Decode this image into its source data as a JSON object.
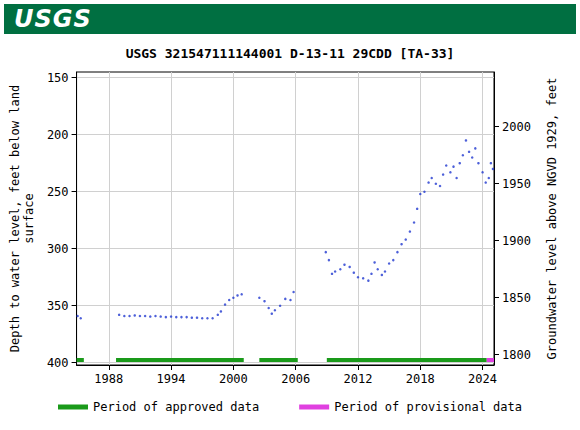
{
  "header": {
    "logo": "USGS"
  },
  "chart_data": {
    "type": "scatter",
    "title": "USGS 321547111144001 D-13-11 29CDD [TA-33]",
    "y_label": "Depth to water level, feet below land\nsurface",
    "y2_label": "Groundwater level above NGVD 1929, feet",
    "color": "#2038d0",
    "marker": "dot",
    "x": [
      1985.0,
      1985.3,
      1989.0,
      1989.5,
      1990.0,
      1990.5,
      1991.0,
      1991.5,
      1992.0,
      1992.5,
      1993.0,
      1993.5,
      1994.0,
      1994.5,
      1995.0,
      1995.5,
      1996.0,
      1996.5,
      1997.0,
      1997.5,
      1998.0,
      1998.5,
      1998.8,
      1999.2,
      1999.6,
      2000.0,
      2000.4,
      2000.8,
      2002.5,
      2003.0,
      2003.4,
      2003.7,
      2004.0,
      2004.5,
      2005.0,
      2005.5,
      2005.8,
      2008.9,
      2009.2,
      2009.5,
      2009.8,
      2010.3,
      2010.7,
      2011.2,
      2011.6,
      2012.0,
      2012.5,
      2013.0,
      2013.3,
      2013.6,
      2013.9,
      2014.3,
      2014.6,
      2015.0,
      2015.4,
      2015.8,
      2016.2,
      2016.6,
      2017.0,
      2017.4,
      2017.7,
      2018.0,
      2018.4,
      2018.8,
      2019.1,
      2019.5,
      2019.9,
      2020.2,
      2020.5,
      2020.9,
      2021.2,
      2021.5,
      2021.8,
      2022.1,
      2022.4,
      2022.7,
      2023.0,
      2023.3,
      2023.6,
      2024.0,
      2024.3,
      2024.6,
      2024.8,
      2025.0
    ],
    "values": [
      359,
      361,
      358,
      359,
      359,
      358.5,
      359,
      359,
      359.5,
      359,
      359.5,
      360,
      359.5,
      360,
      360,
      360,
      360.5,
      360.5,
      361,
      361,
      361,
      358,
      355,
      349,
      345,
      343,
      341,
      340,
      343,
      346,
      352,
      357,
      354,
      350,
      344,
      345,
      338,
      303,
      310,
      322,
      320,
      318,
      314,
      316,
      321,
      325,
      326,
      328,
      322,
      312,
      318,
      323,
      320,
      313,
      310,
      303,
      296,
      292,
      285,
      277,
      265,
      252,
      250,
      242,
      238,
      243,
      245,
      235,
      227,
      233,
      228,
      238,
      225,
      218,
      205,
      215,
      220,
      212,
      225,
      233,
      242,
      238,
      225,
      230
    ],
    "periods": [
      {
        "name": "Period of approved data",
        "color": "#1a9a1a",
        "ranges": [
          [
            1984.8,
            1985.6
          ],
          [
            1988.7,
            2001.0
          ],
          [
            2002.5,
            2006.2
          ],
          [
            2009.0,
            2024.4
          ]
        ]
      },
      {
        "name": "Period of provisional data",
        "color": "#e040e0",
        "ranges": [
          [
            2024.4,
            2025.1
          ]
        ]
      }
    ],
    "xlim": [
      1984.9,
      2025.1
    ],
    "xticks": [
      1988,
      1994,
      2000,
      2006,
      2012,
      2018,
      2024
    ],
    "ylim": [
      145,
      402
    ],
    "yticks": [
      150,
      200,
      250,
      300,
      350,
      400
    ],
    "y2lim": [
      1791,
      2048
    ],
    "y2ticks": [
      1800,
      1850,
      1900,
      1950,
      2000
    ],
    "grid": true,
    "legend": "bottom"
  }
}
